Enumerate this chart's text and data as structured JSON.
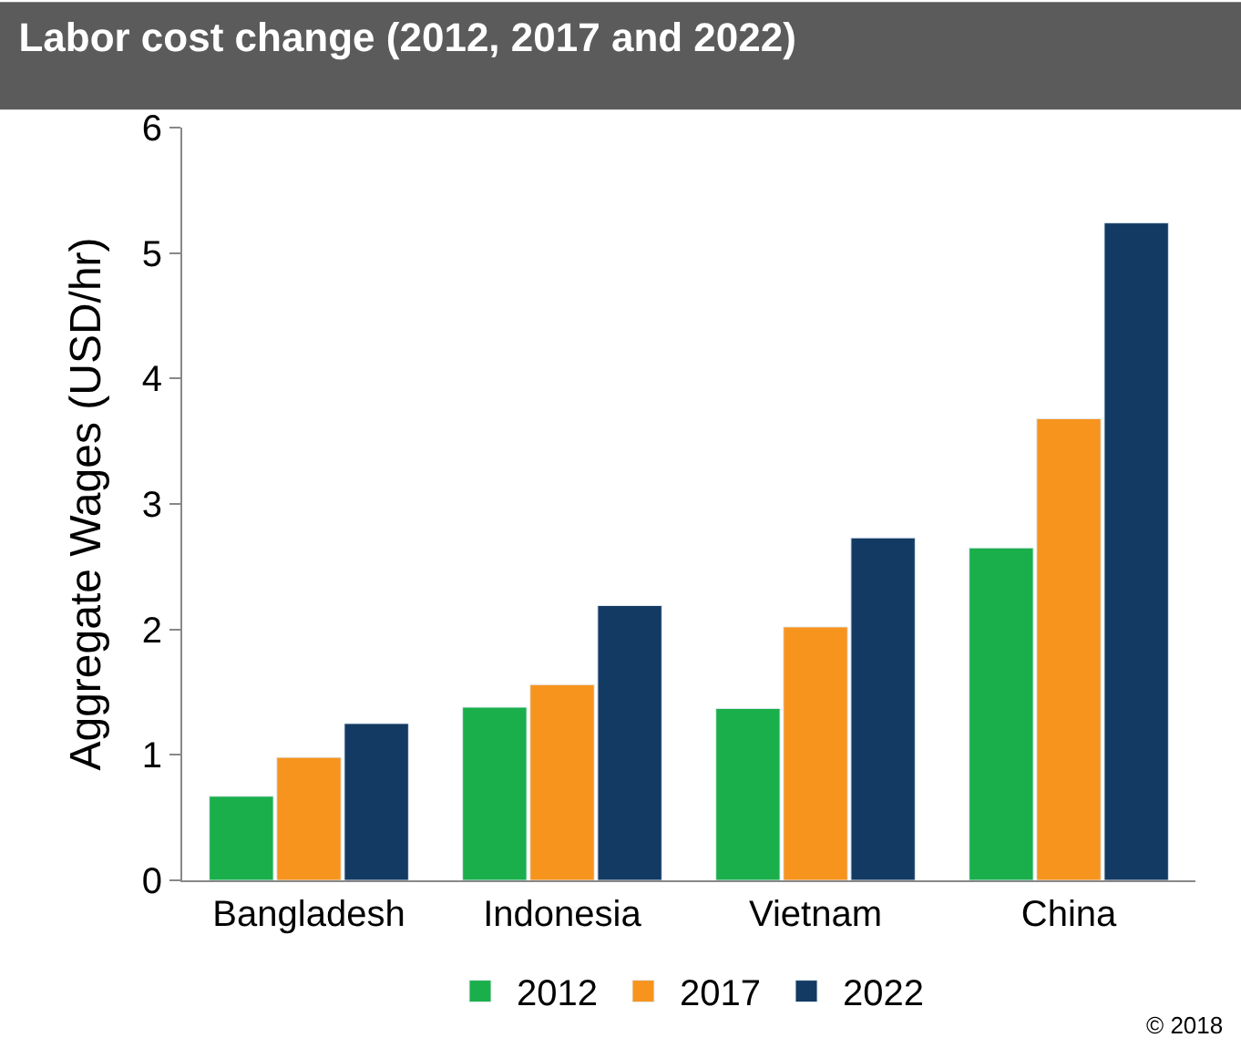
{
  "chart_data": {
    "type": "bar",
    "title": "Labor cost change (2012, 2017 and 2022)",
    "ylabel": "Aggregate Wages (USD/hr)",
    "categories": [
      "Bangladesh",
      "Indonesia",
      "Vietnam",
      "China"
    ],
    "series": [
      {
        "name": "2012",
        "color": "#1aaf4b",
        "values": [
          0.67,
          1.38,
          1.37,
          2.65
        ]
      },
      {
        "name": "2017",
        "color": "#f7941d",
        "values": [
          0.98,
          1.56,
          2.02,
          3.68
        ]
      },
      {
        "name": "2022",
        "color": "#133a63",
        "values": [
          1.25,
          2.19,
          2.73,
          5.24
        ]
      }
    ],
    "ylim": [
      0,
      6
    ],
    "yticks": [
      0,
      1,
      2,
      3,
      4,
      5,
      6
    ],
    "legend": "bottom",
    "annotations": [
      "© 2018"
    ]
  }
}
